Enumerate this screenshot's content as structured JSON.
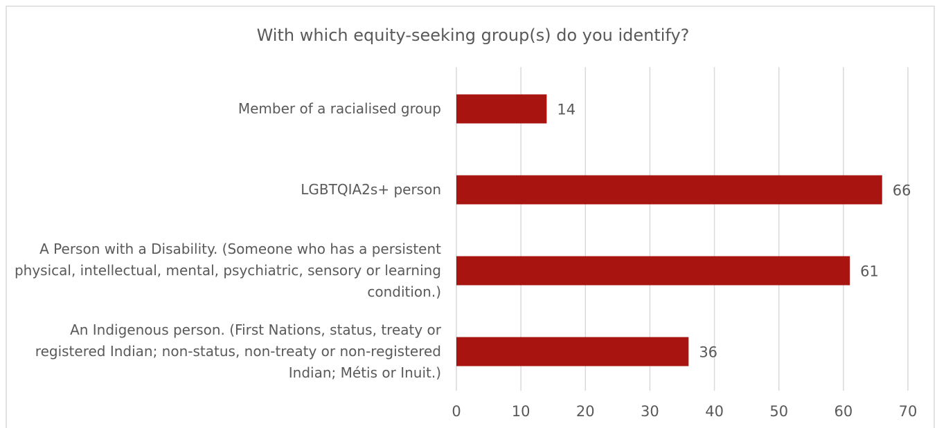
{
  "chart_data": {
    "type": "barh",
    "title": "With which equity-seeking group(s) do you identify?",
    "categories": [
      "Member of a racialised group",
      "LGBTQIA2s+ person",
      "A Person with a Disability. (Someone who has a persistent physical, intellectual, mental, psychiatric, sensory or learning condition.)",
      "An Indigenous person. (First Nations, status, treaty or registered Indian; non-status, non-treaty or non-registered Indian; Métis or Inuit.)"
    ],
    "values": [
      14,
      66,
      61,
      36
    ],
    "color": "#a81410",
    "xlim": [
      0,
      70
    ],
    "xticks": [
      0,
      10,
      20,
      30,
      40,
      50,
      60,
      70
    ],
    "grid": true
  }
}
